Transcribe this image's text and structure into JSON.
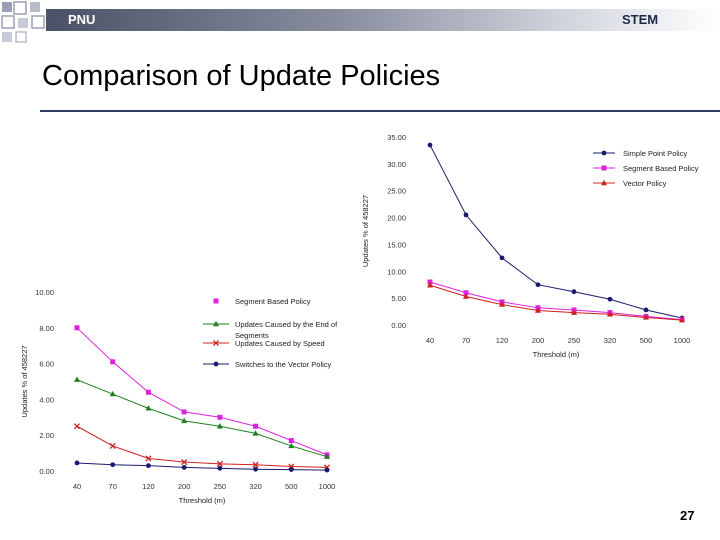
{
  "header": {
    "left_label": "PNU",
    "right_label": "STEM"
  },
  "slide": {
    "title": "Comparison of Update Policies",
    "page_number": "27"
  },
  "colors": {
    "header_dark": "#4a5166",
    "rule": "#2f3b63",
    "navy": "#1a1a6e",
    "magenta": "#e020e0",
    "green": "#208020",
    "red": "#d02020"
  },
  "chart_data": [
    {
      "type": "line",
      "title": "",
      "xlabel": "Threshold (m)",
      "ylabel": "Updates % of 458227",
      "categories": [
        "40",
        "70",
        "120",
        "200",
        "250",
        "320",
        "500",
        "1000"
      ],
      "ylim": [
        0,
        35
      ],
      "yticks": [
        "0.00",
        "5.00",
        "10.00",
        "15.00",
        "20.00",
        "25.00",
        "30.00",
        "35.00"
      ],
      "legend_position": "top-right",
      "series": [
        {
          "name": "Simple Point Policy",
          "color": "#1a1a6e",
          "marker": "circle",
          "values": [
            33.5,
            20.5,
            12.5,
            7.5,
            6.2,
            4.8,
            2.8,
            1.3
          ]
        },
        {
          "name": "Segment Based Policy",
          "color": "#e020e0",
          "marker": "square",
          "values": [
            8.0,
            6.0,
            4.3,
            3.2,
            2.8,
            2.3,
            1.6,
            1.0
          ]
        },
        {
          "name": "Vector Policy",
          "color": "#d02020",
          "marker": "triangle",
          "values": [
            7.4,
            5.3,
            3.8,
            2.7,
            2.3,
            2.0,
            1.4,
            0.9
          ]
        }
      ]
    },
    {
      "type": "line",
      "title": "",
      "xlabel": "Threshold (m)",
      "ylabel": "Updates % of 458227",
      "categories": [
        "40",
        "70",
        "120",
        "200",
        "250",
        "320",
        "500",
        "1000"
      ],
      "ylim": [
        0,
        10
      ],
      "yticks": [
        "0.00",
        "2.00",
        "4.00",
        "6.00",
        "8.00",
        "10.00"
      ],
      "legend_position": "top-right",
      "series": [
        {
          "name": "Segment Based Policy",
          "color": "#e020e0",
          "marker": "square",
          "values": [
            8.0,
            6.1,
            4.4,
            3.3,
            3.0,
            2.5,
            1.7,
            0.9
          ]
        },
        {
          "name": "Updates Caused by the End of Segments",
          "color": "#208020",
          "marker": "triangle",
          "values": [
            5.1,
            4.3,
            3.5,
            2.8,
            2.5,
            2.1,
            1.4,
            0.8
          ]
        },
        {
          "name": "Updates Caused by Speed",
          "color": "#d02020",
          "marker": "x",
          "values": [
            2.5,
            1.4,
            0.7,
            0.5,
            0.4,
            0.35,
            0.25,
            0.2
          ]
        },
        {
          "name": "Switches to the Vector Policy",
          "color": "#1a1a6e",
          "marker": "circle",
          "values": [
            0.45,
            0.35,
            0.3,
            0.2,
            0.15,
            0.1,
            0.08,
            0.05
          ]
        }
      ]
    }
  ]
}
